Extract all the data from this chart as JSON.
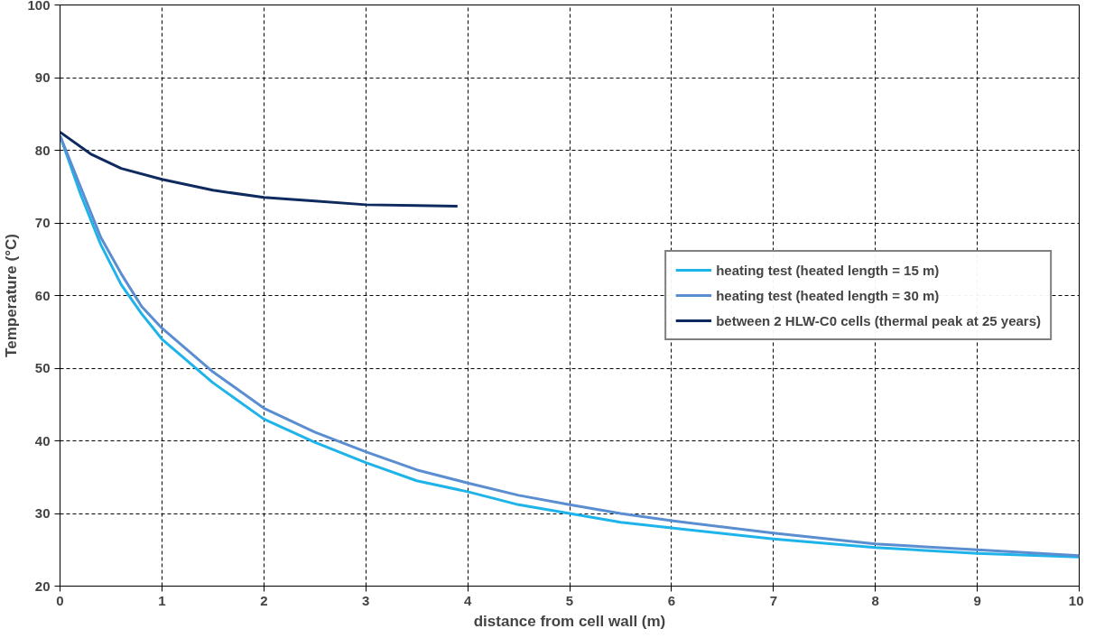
{
  "chart_data": {
    "type": "line",
    "xlabel": "distance from cell wall (m)",
    "ylabel": "Temperature (°C)",
    "xlim": [
      0,
      10
    ],
    "ylim": [
      20,
      100
    ],
    "xticks": [
      0,
      1,
      2,
      3,
      4,
      5,
      6,
      7,
      8,
      9,
      10
    ],
    "yticks": [
      20,
      30,
      40,
      50,
      60,
      70,
      80,
      90,
      100
    ],
    "grid": true,
    "legend": "right",
    "marker": "none",
    "line_style": "solid",
    "series": [
      {
        "name": "heating test (heated length = 15 m)",
        "color": "#1eb4ea",
        "x": [
          0,
          0.2,
          0.4,
          0.6,
          0.8,
          1,
          1.5,
          2,
          2.5,
          3,
          3.5,
          4,
          4.5,
          5,
          5.5,
          6,
          7,
          8,
          9,
          10
        ],
        "values": [
          82,
          74,
          67,
          61.5,
          57.5,
          54,
          48,
          43,
          39.8,
          37,
          34.5,
          33,
          31.2,
          30,
          28.8,
          28,
          26.5,
          25.3,
          24.5,
          24
        ]
      },
      {
        "name": "heating test (heated length = 30 m)",
        "color": "#5b8ed0",
        "x": [
          0,
          0.2,
          0.4,
          0.6,
          0.8,
          1,
          1.5,
          2,
          2.5,
          3,
          3.5,
          4,
          4.5,
          5,
          5.5,
          6,
          7,
          8,
          9,
          10
        ],
        "values": [
          82,
          75,
          68,
          63,
          58.5,
          55.5,
          49.5,
          44.5,
          41.2,
          38.5,
          36,
          34.2,
          32.5,
          31.2,
          30,
          29,
          27.3,
          25.8,
          25,
          24.2
        ]
      },
      {
        "name": "between 2 HLW-C0 cells (thermal peak at 25 years)",
        "color": "#0f2a5e",
        "x": [
          0,
          0.3,
          0.6,
          1,
          1.5,
          2,
          2.5,
          3,
          3.5,
          3.9
        ],
        "values": [
          82.5,
          79.5,
          77.5,
          76,
          74.5,
          73.5,
          73,
          72.5,
          72.4,
          72.3
        ]
      }
    ]
  }
}
